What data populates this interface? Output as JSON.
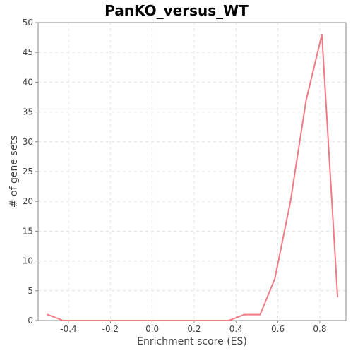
{
  "chart_data": {
    "type": "line",
    "title": "PanKO_versus_WT",
    "xlabel": "Enrichment score (ES)",
    "ylabel": "# of gene sets",
    "xlim": [
      -0.545,
      0.925
    ],
    "ylim": [
      0,
      50
    ],
    "xticks": [
      -0.4,
      -0.2,
      0.0,
      0.2,
      0.4,
      0.6,
      0.8
    ],
    "xtick_labels": [
      "-0.4",
      "-0.2",
      "0.0",
      "0.2",
      "0.4",
      "0.6",
      "0.8"
    ],
    "yticks": [
      0,
      5,
      10,
      15,
      20,
      25,
      30,
      35,
      40,
      45,
      50
    ],
    "ytick_labels": [
      "0",
      "5",
      "10",
      "15",
      "20",
      "25",
      "30",
      "35",
      "40",
      "45",
      "50"
    ],
    "grid": true,
    "line_color": "#f07a85",
    "series": [
      {
        "x": [
          -0.5,
          -0.425,
          -0.35,
          -0.275,
          -0.2,
          -0.125,
          -0.05,
          0.025,
          0.1,
          0.175,
          0.25,
          0.325,
          0.365,
          0.44,
          0.515,
          0.585,
          0.66,
          0.735,
          0.81,
          0.885
        ],
        "values": [
          1,
          0,
          0,
          0,
          0,
          0,
          0,
          0,
          0,
          0,
          0,
          0,
          0,
          1,
          1,
          7,
          20,
          37,
          48,
          4
        ]
      }
    ]
  }
}
